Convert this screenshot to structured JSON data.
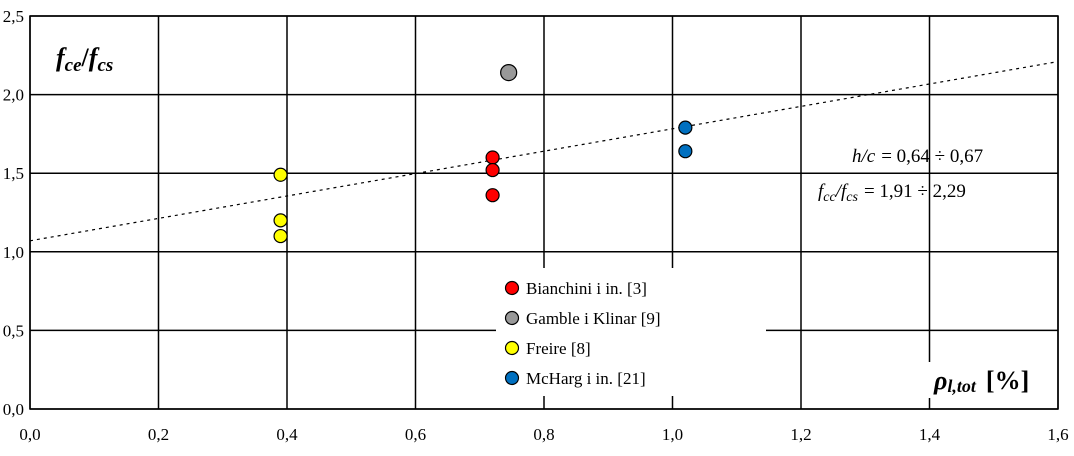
{
  "chart_data": {
    "type": "scatter",
    "ylabel": {
      "main": "f",
      "sub": "ce",
      "sep": "/",
      "main2": "f",
      "sub2": "cs"
    },
    "xlabel": {
      "main": "ρ",
      "sub": "l,tot",
      "unit": "[%]"
    },
    "xlim": [
      0,
      1.6
    ],
    "ylim": [
      0,
      2.5
    ],
    "x_ticks": [
      "0,0",
      "0,2",
      "0,4",
      "0,6",
      "0,8",
      "1,0",
      "1,2",
      "1,4",
      "1,6"
    ],
    "y_ticks": [
      "0,0",
      "0,5",
      "1,0",
      "1,5",
      "2,0",
      "2,5"
    ],
    "grid": true,
    "legend_position": "bottom-center",
    "series": [
      {
        "name": "Bianchini i in. [3]",
        "color": "#ff0000",
        "points": [
          [
            0.72,
            1.6
          ],
          [
            0.72,
            1.52
          ],
          [
            0.72,
            1.36
          ]
        ]
      },
      {
        "name": "Gamble i Klinar [9]",
        "color": "#999999",
        "points": [
          [
            0.745,
            2.14
          ]
        ]
      },
      {
        "name": "Freire [8]",
        "color": "#ffff00",
        "points": [
          [
            0.39,
            1.49
          ],
          [
            0.39,
            1.2
          ],
          [
            0.39,
            1.1
          ]
        ]
      },
      {
        "name": "McHarg i in. [21]",
        "color": "#0070c0",
        "points": [
          [
            1.02,
            1.79
          ],
          [
            1.02,
            1.64
          ]
        ]
      }
    ],
    "trendline": {
      "style": "dotted",
      "points": [
        [
          0.0,
          1.07
        ],
        [
          1.6,
          2.21
        ]
      ]
    },
    "annotations": [
      {
        "lhs": "h/c",
        "rhs": "= 0,64 ÷ 0,67"
      },
      {
        "lhs_main": "f",
        "lhs_sub": "cc",
        "lhs_sep": "/",
        "lhs_main2": "f",
        "lhs_sub2": "cs",
        "rhs": "= 1,91 ÷ 2,29"
      }
    ]
  }
}
